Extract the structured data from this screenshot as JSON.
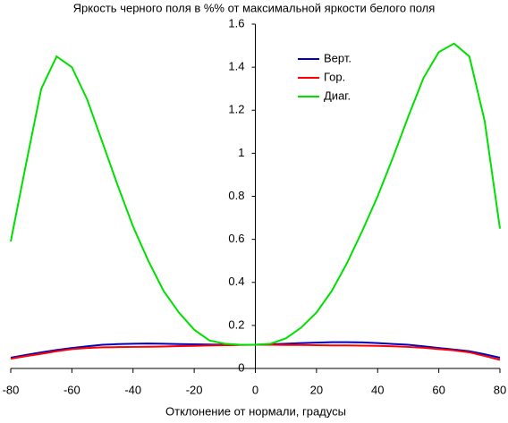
{
  "chart_data": {
    "type": "line",
    "title": "Яркость черного поля в %% от максимальной яркости белого поля",
    "xlabel": "Отклонение от нормали, градусы",
    "x": [
      -80,
      -75,
      -70,
      -65,
      -60,
      -55,
      -50,
      -45,
      -40,
      -35,
      -30,
      -25,
      -20,
      -15,
      -10,
      -5,
      0,
      5,
      10,
      15,
      20,
      25,
      30,
      35,
      40,
      45,
      50,
      55,
      60,
      65,
      70,
      75,
      80
    ],
    "series": [
      {
        "name": "Верт.",
        "color": "#0000c0",
        "values": [
          0.05,
          0.063,
          0.075,
          0.086,
          0.095,
          0.103,
          0.11,
          0.113,
          0.115,
          0.116,
          0.115,
          0.113,
          0.112,
          0.111,
          0.11,
          0.11,
          0.11,
          0.112,
          0.115,
          0.118,
          0.12,
          0.122,
          0.122,
          0.121,
          0.118,
          0.114,
          0.11,
          0.103,
          0.095,
          0.088,
          0.08,
          0.066,
          0.05
        ]
      },
      {
        "name": "Гор.",
        "color": "#ff0000",
        "values": [
          0.045,
          0.057,
          0.068,
          0.08,
          0.09,
          0.095,
          0.098,
          0.099,
          0.1,
          0.101,
          0.102,
          0.104,
          0.105,
          0.107,
          0.108,
          0.109,
          0.11,
          0.11,
          0.109,
          0.109,
          0.108,
          0.107,
          0.107,
          0.106,
          0.105,
          0.103,
          0.1,
          0.096,
          0.09,
          0.084,
          0.075,
          0.058,
          0.04
        ]
      },
      {
        "name": "Диаг.",
        "color": "#00e000",
        "values": [
          0.59,
          0.95,
          1.3,
          1.45,
          1.4,
          1.25,
          1.05,
          0.85,
          0.66,
          0.5,
          0.36,
          0.26,
          0.18,
          0.13,
          0.115,
          0.11,
          0.11,
          0.115,
          0.14,
          0.19,
          0.26,
          0.36,
          0.49,
          0.64,
          0.8,
          0.98,
          1.17,
          1.35,
          1.47,
          1.51,
          1.45,
          1.15,
          0.65
        ]
      }
    ],
    "xlim": [
      -80,
      80
    ],
    "xticks": [
      -80,
      -60,
      -40,
      -20,
      0,
      20,
      40,
      60,
      80
    ],
    "ylim": [
      0,
      1.6
    ],
    "yticks": [
      0,
      0.2,
      0.4,
      0.6,
      0.8,
      1,
      1.2,
      1.4,
      1.6
    ],
    "legend": "upper center"
  }
}
